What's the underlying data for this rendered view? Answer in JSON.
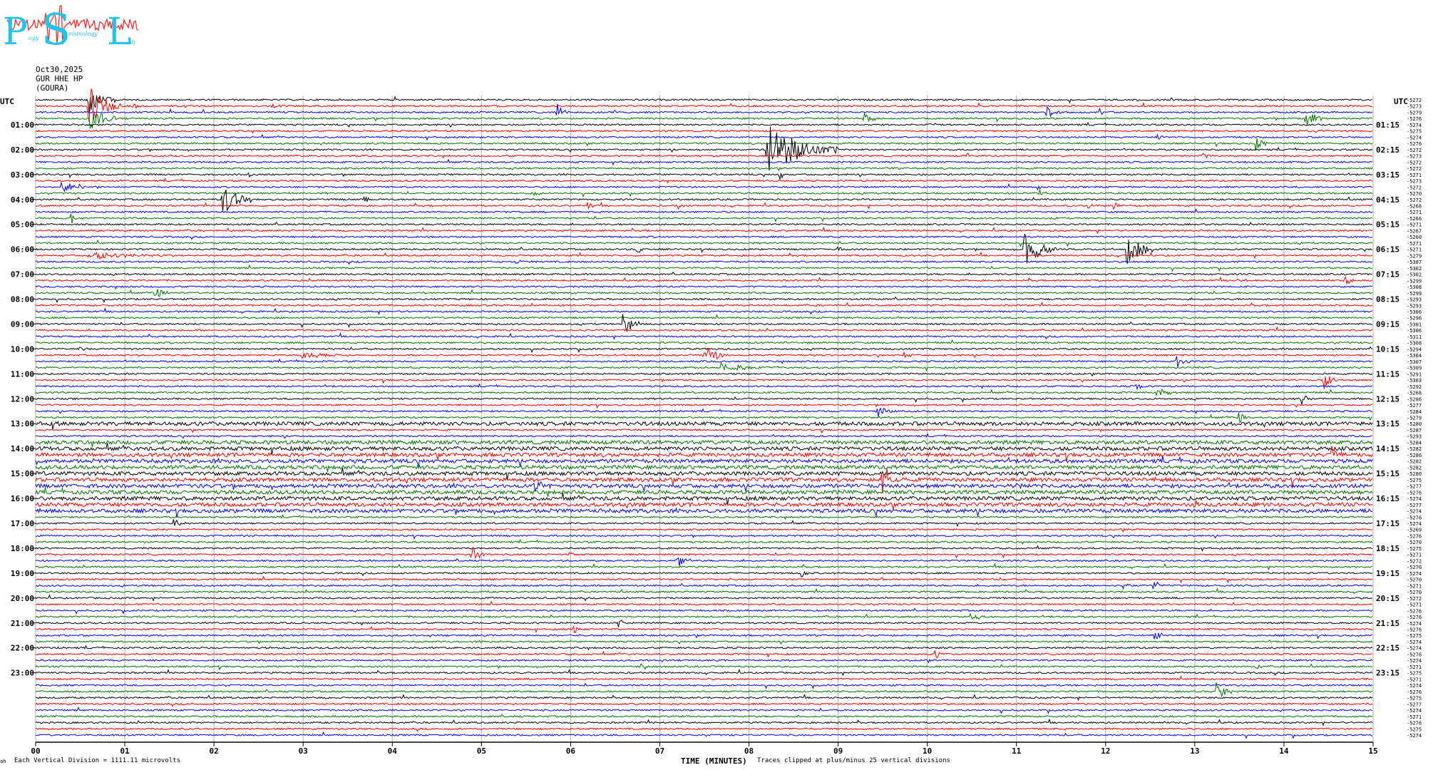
{
  "logo": {
    "letters": "PSL",
    "subtext_left": "ogy",
    "subtext_mid": "eismology",
    "subtext_right": "ab"
  },
  "header": {
    "date": "Oct30,2025",
    "channel": "GUR HHE HP",
    "station": "(GOURA)"
  },
  "axis": {
    "left_title": "UTC",
    "right_title": "UTC",
    "x_title": "TIME (MINUTES)",
    "scale_note": "Each Vertical Division = 1111.11 microvolts",
    "clip_note": "Traces clipped at plus/minus 25 vertical divisions",
    "corner_mark": "ah"
  },
  "chart_data": {
    "type": "line",
    "title": "",
    "xlabel": "TIME (MINUTES)",
    "xlim": [
      0,
      15
    ],
    "x_ticks": [
      "00",
      "01",
      "02",
      "03",
      "04",
      "05",
      "06",
      "07",
      "08",
      "09",
      "10",
      "11",
      "12",
      "13",
      "14",
      "15"
    ],
    "left_labels": [
      "01:00",
      "02:00",
      "03:00",
      "04:00",
      "05:00",
      "06:00",
      "07:00",
      "08:00",
      "09:00",
      "10:00",
      "11:00",
      "12:00",
      "13:00",
      "14:00",
      "15:00",
      "16:00",
      "17:00",
      "18:00",
      "19:00",
      "20:00",
      "21:00",
      "22:00",
      "23:00"
    ],
    "right_labels": [
      "01:15",
      "02:15",
      "03:15",
      "04:15",
      "05:15",
      "06:15",
      "07:15",
      "08:15",
      "09:15",
      "10:15",
      "11:15",
      "12:15",
      "13:15",
      "14:15",
      "15:15",
      "16:15",
      "17:15",
      "18:15",
      "19:15",
      "20:15",
      "21:15",
      "22:15",
      "23:15"
    ],
    "trace_colors": [
      "#000000",
      "#ff0000",
      "#0000ff",
      "#007700"
    ],
    "trace_offsets": [
      "-5272",
      "-5273",
      "-5279",
      "-5276",
      "-5274",
      "-5275",
      "-5274",
      "-5276",
      "-5272",
      "-5273",
      "-5272",
      "-5272",
      "-5271",
      "-5273",
      "-5272",
      "-5270",
      "-5272",
      "-5268",
      "-5271",
      "-5266",
      "-5271",
      "-5267",
      "-5260",
      "-5271",
      "-5271",
      "-5279",
      "-5307",
      "-5302",
      "-5302",
      "-5299",
      "-5308",
      "-5299",
      "-5293",
      "-5293",
      "-5306",
      "-5296",
      "-5301",
      "-5306",
      "-5311",
      "-5308",
      "-5294",
      "-5304",
      "-5307",
      "-5309",
      "-5291",
      "-5303",
      "-5292",
      "-5268",
      "-5286",
      "-5277",
      "-5284",
      "-5279",
      "-5280",
      "-5287",
      "-5293",
      "-5284",
      "-5282",
      "-5286",
      "-5282",
      "-5282",
      "-5280",
      "-5275",
      "-5277",
      "-5276",
      "-5274",
      "-5277",
      "-5274",
      "-5276",
      "-5274",
      "-5269",
      "-5276",
      "-5270",
      "-5275",
      "-5271",
      "-5272",
      "-5270",
      "-5274",
      "-5270",
      "-5271",
      "-5270",
      "-5272",
      "-5271",
      "-5276",
      "-5276",
      "-5274",
      "-5276",
      "-5275",
      "-5274",
      "-5274",
      "-5276",
      "-5274",
      "-5271",
      "-5275",
      "-5271",
      "-5274",
      "-5276",
      "-5275",
      "-5277",
      "-5274",
      "-5271",
      "-5276",
      "-5275",
      "-5274"
    ],
    "events": [
      {
        "row": 1,
        "minute": 0.6,
        "amp": 30,
        "dur": 0.35
      },
      {
        "row": 0,
        "minute": 0.6,
        "amp": 22,
        "dur": 0.3
      },
      {
        "row": 3,
        "minute": 0.62,
        "amp": 18,
        "dur": 0.3
      },
      {
        "row": 1,
        "minute": 1.1,
        "amp": 6,
        "dur": 0.1
      },
      {
        "row": 2,
        "minute": 5.85,
        "amp": 18,
        "dur": 0.12
      },
      {
        "row": 1,
        "minute": 2.65,
        "amp": 4,
        "dur": 0.1
      },
      {
        "row": 2,
        "minute": 6.5,
        "amp": 4,
        "dur": 0.1
      },
      {
        "row": 3,
        "minute": 9.3,
        "amp": 10,
        "dur": 0.15
      },
      {
        "row": 2,
        "minute": 11.35,
        "amp": 10,
        "dur": 0.18
      },
      {
        "row": 3,
        "minute": 14.25,
        "amp": 16,
        "dur": 0.2
      },
      {
        "row": 2,
        "minute": 11.95,
        "amp": 5,
        "dur": 0.1
      },
      {
        "row": 4,
        "minute": 10.0,
        "amp": 5,
        "dur": 0.1
      },
      {
        "row": 5,
        "minute": 14.35,
        "amp": 4,
        "dur": 0.1
      },
      {
        "row": 6,
        "minute": 12.6,
        "amp": 4,
        "dur": 0.1
      },
      {
        "row": 7,
        "minute": 13.7,
        "amp": 10,
        "dur": 0.15
      },
      {
        "row": 8,
        "minute": 8.2,
        "amp": 38,
        "dur": 0.8
      },
      {
        "row": 9,
        "minute": 10.45,
        "amp": 5,
        "dur": 0.05
      },
      {
        "row": 9,
        "minute": 13.1,
        "amp": 6,
        "dur": 0.12
      },
      {
        "row": 12,
        "minute": 8.35,
        "amp": 6,
        "dur": 0.1
      },
      {
        "row": 12,
        "minute": 2.4,
        "amp": 3,
        "dur": 0.1
      },
      {
        "row": 14,
        "minute": 0.3,
        "amp": 8,
        "dur": 0.5
      },
      {
        "row": 14,
        "minute": 11.25,
        "amp": 4,
        "dur": 0.1
      },
      {
        "row": 15,
        "minute": 11.25,
        "amp": 6,
        "dur": 0.1
      },
      {
        "row": 15,
        "minute": 5.6,
        "amp": 4,
        "dur": 0.1
      },
      {
        "row": 16,
        "minute": 2.1,
        "amp": 24,
        "dur": 0.3
      },
      {
        "row": 16,
        "minute": 3.7,
        "amp": 5,
        "dur": 0.08
      },
      {
        "row": 17,
        "minute": 6.2,
        "amp": 5,
        "dur": 0.1
      },
      {
        "row": 17,
        "minute": 7.2,
        "amp": 7,
        "dur": 0.12
      },
      {
        "row": 17,
        "minute": 11.8,
        "amp": 6,
        "dur": 0.1
      },
      {
        "row": 17,
        "minute": 12.1,
        "amp": 8,
        "dur": 0.1
      },
      {
        "row": 19,
        "minute": 0.4,
        "amp": 8,
        "dur": 0.1
      },
      {
        "row": 24,
        "minute": 11.1,
        "amp": 24,
        "dur": 0.35
      },
      {
        "row": 24,
        "minute": 12.25,
        "amp": 22,
        "dur": 0.3
      },
      {
        "row": 24,
        "minute": 6.75,
        "amp": 6,
        "dur": 0.12
      },
      {
        "row": 24,
        "minute": 9.0,
        "amp": 4,
        "dur": 0.1
      },
      {
        "row": 25,
        "minute": 0.6,
        "amp": 6,
        "dur": 1.0
      },
      {
        "row": 26,
        "minute": 5.4,
        "amp": 4,
        "dur": 0.1
      },
      {
        "row": 29,
        "minute": 13.5,
        "amp": 5,
        "dur": 0.12
      },
      {
        "row": 29,
        "minute": 14.7,
        "amp": 5,
        "dur": 0.15
      },
      {
        "row": 31,
        "minute": 1.35,
        "amp": 10,
        "dur": 0.15
      },
      {
        "row": 36,
        "minute": 6.6,
        "amp": 18,
        "dur": 0.2
      },
      {
        "row": 40,
        "minute": 0.5,
        "amp": 4,
        "dur": 0.1
      },
      {
        "row": 41,
        "minute": 3.0,
        "amp": 5,
        "dur": 0.6
      },
      {
        "row": 41,
        "minute": 7.5,
        "amp": 16,
        "dur": 0.25
      },
      {
        "row": 41,
        "minute": 9.75,
        "amp": 6,
        "dur": 0.1
      },
      {
        "row": 42,
        "minute": 12.8,
        "amp": 10,
        "dur": 0.15
      },
      {
        "row": 43,
        "minute": 7.7,
        "amp": 6,
        "dur": 0.6
      },
      {
        "row": 45,
        "minute": 14.45,
        "amp": 14,
        "dur": 0.2
      },
      {
        "row": 46,
        "minute": 12.35,
        "amp": 8,
        "dur": 0.1
      },
      {
        "row": 47,
        "minute": 12.6,
        "amp": 5,
        "dur": 0.2
      },
      {
        "row": 48,
        "minute": 14.2,
        "amp": 8,
        "dur": 0.12
      },
      {
        "row": 50,
        "minute": 9.45,
        "amp": 8,
        "dur": 0.2
      },
      {
        "row": 52,
        "minute": 0.2,
        "amp": 6,
        "dur": 0.1
      },
      {
        "row": 51,
        "minute": 13.5,
        "amp": 10,
        "dur": 0.1
      },
      {
        "row": 57,
        "minute": 14.55,
        "amp": 12,
        "dur": 0.2
      },
      {
        "row": 61,
        "minute": 9.5,
        "amp": 25,
        "dur": 0.2
      },
      {
        "row": 62,
        "minute": 5.6,
        "amp": 10,
        "dur": 0.2
      },
      {
        "row": 62,
        "minute": 11.0,
        "amp": 6,
        "dur": 0.1
      },
      {
        "row": 65,
        "minute": 13.0,
        "amp": 6,
        "dur": 0.15
      },
      {
        "row": 68,
        "minute": 1.55,
        "amp": 8,
        "dur": 0.15
      },
      {
        "row": 73,
        "minute": 4.9,
        "amp": 10,
        "dur": 0.2
      },
      {
        "row": 73,
        "minute": 6.0,
        "amp": 4,
        "dur": 0.1
      },
      {
        "row": 74,
        "minute": 7.2,
        "amp": 10,
        "dur": 0.2
      },
      {
        "row": 76,
        "minute": 8.6,
        "amp": 6,
        "dur": 0.1
      },
      {
        "row": 77,
        "minute": 9.5,
        "amp": 4,
        "dur": 0.1
      },
      {
        "row": 78,
        "minute": 12.2,
        "amp": 5,
        "dur": 0.1
      },
      {
        "row": 78,
        "minute": 12.55,
        "amp": 7,
        "dur": 0.12
      },
      {
        "row": 84,
        "minute": 6.55,
        "amp": 6,
        "dur": 0.1
      },
      {
        "row": 85,
        "minute": 6.05,
        "amp": 6,
        "dur": 0.1
      },
      {
        "row": 83,
        "minute": 10.5,
        "amp": 5,
        "dur": 0.2
      },
      {
        "row": 86,
        "minute": 12.55,
        "amp": 7,
        "dur": 0.15
      },
      {
        "row": 89,
        "minute": 10.1,
        "amp": 6,
        "dur": 0.1
      },
      {
        "row": 91,
        "minute": 6.8,
        "amp": 8,
        "dur": 0.12
      },
      {
        "row": 91,
        "minute": 13.7,
        "amp": 4,
        "dur": 0.1
      },
      {
        "row": 95,
        "minute": 13.25,
        "amp": 14,
        "dur": 0.2
      }
    ],
    "noisy_rows": [
      52,
      55,
      56,
      57,
      58,
      59,
      60,
      61,
      62,
      63,
      64,
      65,
      66
    ]
  }
}
